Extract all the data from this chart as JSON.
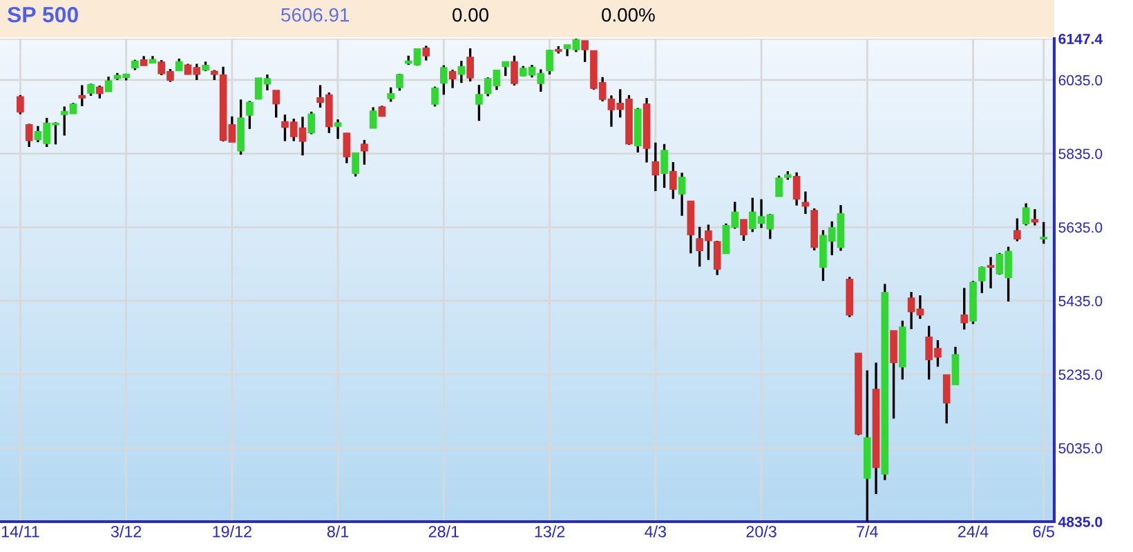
{
  "chart_data": {
    "type": "candlestick",
    "title": "SP 500",
    "annotations": [
      "5606.91",
      "0.00",
      "0.00%"
    ],
    "categories": [
      "14/11",
      null,
      null,
      null,
      null,
      null,
      null,
      null,
      null,
      null,
      null,
      null,
      "3/12",
      null,
      null,
      null,
      null,
      null,
      null,
      null,
      null,
      null,
      null,
      null,
      "19/12",
      null,
      null,
      null,
      null,
      null,
      null,
      null,
      null,
      null,
      null,
      null,
      "8/1",
      null,
      null,
      null,
      null,
      null,
      null,
      null,
      null,
      null,
      null,
      null,
      "28/1",
      null,
      null,
      null,
      null,
      null,
      null,
      null,
      null,
      null,
      null,
      null,
      "13/2",
      null,
      null,
      null,
      null,
      null,
      null,
      null,
      null,
      null,
      null,
      null,
      "4/3",
      null,
      null,
      null,
      null,
      null,
      null,
      null,
      null,
      null,
      null,
      null,
      "20/3",
      null,
      null,
      null,
      null,
      null,
      null,
      null,
      null,
      null,
      null,
      null,
      "7/4",
      null,
      null,
      null,
      null,
      null,
      null,
      null,
      null,
      null,
      null,
      null,
      "24/4",
      null,
      null,
      null,
      null,
      null,
      null,
      null,
      "6/5"
    ],
    "ohlc": [
      [
        5989,
        5994,
        5942,
        5949
      ],
      [
        5913,
        5916,
        5853,
        5871
      ],
      [
        5874,
        5910,
        5866,
        5894
      ],
      [
        5863,
        5932,
        5853,
        5917
      ],
      [
        5914,
        5920,
        5860,
        5917
      ],
      [
        5942,
        5963,
        5884,
        5949
      ],
      [
        5944,
        5973,
        5944,
        5969
      ],
      [
        5992,
        6021,
        5964,
        5987
      ],
      [
        6000,
        6025,
        5992,
        6022
      ],
      [
        6015,
        6020,
        5985,
        5999
      ],
      [
        6004,
        6044,
        6004,
        6032
      ],
      [
        6040,
        6054,
        6035,
        6047
      ],
      [
        6042,
        6052,
        6034,
        6050
      ],
      [
        6069,
        6090,
        6062,
        6086
      ],
      [
        6089,
        6100,
        6075,
        6075
      ],
      [
        6082,
        6100,
        6080,
        6090
      ],
      [
        6083,
        6089,
        6048,
        6053
      ],
      [
        6057,
        6065,
        6030,
        6035
      ],
      [
        6061,
        6093,
        6060,
        6084
      ],
      [
        6075,
        6079,
        6051,
        6051
      ],
      [
        6068,
        6079,
        6035,
        6051
      ],
      [
        6063,
        6085,
        6059,
        6074
      ],
      [
        6058,
        6062,
        6035,
        6051
      ],
      [
        6048,
        6071,
        5868,
        5872
      ],
      [
        5913,
        5936,
        5866,
        5867
      ],
      [
        5843,
        5982,
        5832,
        5931
      ],
      [
        5940,
        5978,
        5902,
        5974
      ],
      [
        5984,
        6040,
        5982,
        6040
      ],
      [
        6025,
        6050,
        6007,
        6038
      ],
      [
        6006,
        6006,
        5933,
        5971
      ],
      [
        5921,
        5941,
        5869,
        5907
      ],
      [
        5920,
        5930,
        5869,
        5882
      ],
      [
        5904,
        5935,
        5830,
        5869
      ],
      [
        5892,
        5949,
        5888,
        5942
      ],
      [
        5986,
        6021,
        5960,
        5975
      ],
      [
        5994,
        6001,
        5891,
        5909
      ],
      [
        5910,
        5928,
        5875,
        5918
      ],
      [
        5890,
        5891,
        5809,
        5827
      ],
      [
        5782,
        5838,
        5773,
        5836
      ],
      [
        5860,
        5872,
        5805,
        5843
      ],
      [
        5905,
        5961,
        5905,
        5950
      ],
      [
        5961,
        5965,
        5936,
        5937
      ],
      [
        5985,
        6015,
        5976,
        5997
      ],
      [
        6015,
        6052,
        6006,
        6049
      ],
      [
        6081,
        6101,
        6076,
        6086
      ],
      [
        6077,
        6119,
        6074,
        6119
      ],
      [
        6121,
        6128,
        6088,
        6101
      ],
      [
        5970,
        6017,
        5963,
        6012
      ],
      [
        6027,
        6075,
        5995,
        6068
      ],
      [
        6057,
        6063,
        6013,
        6039
      ],
      [
        6051,
        6087,
        6027,
        6071
      ],
      [
        6096,
        6121,
        6031,
        6041
      ],
      [
        5970,
        6022,
        5924,
        5995
      ],
      [
        5999,
        6042,
        5991,
        6038
      ],
      [
        6020,
        6063,
        6008,
        6061
      ],
      [
        6072,
        6084,
        6046,
        6084
      ],
      [
        6084,
        6101,
        6020,
        6026
      ],
      [
        6047,
        6073,
        6045,
        6066
      ],
      [
        6049,
        6076,
        6042,
        6069
      ],
      [
        6026,
        6064,
        6003,
        6052
      ],
      [
        6061,
        6117,
        6050,
        6115
      ],
      [
        6117,
        6127,
        6107,
        6114
      ],
      [
        6121,
        6130,
        6100,
        6130
      ],
      [
        6118,
        6147.4,
        6111,
        6144
      ],
      [
        6141,
        6141,
        6084,
        6118
      ],
      [
        6114,
        6115,
        6009,
        6013
      ],
      [
        6027,
        6043,
        5977,
        5983
      ],
      [
        5982,
        5993,
        5908,
        5955
      ],
      [
        5971,
        6010,
        5933,
        5956
      ],
      [
        5982,
        5994,
        5859,
        5862
      ],
      [
        5857,
        5959,
        5838,
        5955
      ],
      [
        5969,
        5986,
        5811,
        5850
      ],
      [
        5812,
        5865,
        5733,
        5778
      ],
      [
        5782,
        5861,
        5742,
        5843
      ],
      [
        5786,
        5812,
        5712,
        5739
      ],
      [
        5726,
        5783,
        5666,
        5770
      ],
      [
        5705,
        5705,
        5564,
        5615
      ],
      [
        5603,
        5636,
        5528,
        5572
      ],
      [
        5624,
        5642,
        5546,
        5599
      ],
      [
        5595,
        5598,
        5505,
        5522
      ],
      [
        5564,
        5645,
        5563,
        5639
      ],
      [
        5636,
        5704,
        5631,
        5675
      ],
      [
        5655,
        5655,
        5598,
        5615
      ],
      [
        5632,
        5715,
        5622,
        5675
      ],
      [
        5646,
        5711,
        5633,
        5663
      ],
      [
        5631,
        5671,
        5603,
        5668
      ],
      [
        5719,
        5775,
        5718,
        5768
      ],
      [
        5771,
        5787,
        5764,
        5777
      ],
      [
        5772,
        5784,
        5694,
        5712
      ],
      [
        5702,
        5732,
        5671,
        5693
      ],
      [
        5680,
        5686,
        5572,
        5581
      ],
      [
        5527,
        5627,
        5489,
        5612
      ],
      [
        5598,
        5651,
        5559,
        5633
      ],
      [
        5581,
        5695,
        5571,
        5671
      ],
      [
        5493,
        5500,
        5391,
        5397
      ],
      [
        5292,
        5292,
        5070,
        5074
      ],
      [
        4954,
        5246,
        4835,
        5062
      ],
      [
        5194,
        5267,
        4910,
        4983
      ],
      [
        4965,
        5481,
        4948,
        5457
      ],
      [
        5353,
        5353,
        5115,
        5268
      ],
      [
        5256,
        5381,
        5221,
        5363
      ],
      [
        5442,
        5459,
        5358,
        5406
      ],
      [
        5412,
        5450,
        5386,
        5397
      ],
      [
        5336,
        5367,
        5221,
        5276
      ],
      [
        5305,
        5328,
        5256,
        5283
      ],
      [
        5233,
        5233,
        5102,
        5158
      ],
      [
        5208,
        5310,
        5208,
        5288
      ],
      [
        5396,
        5470,
        5357,
        5376
      ],
      [
        5381,
        5489,
        5372,
        5485
      ],
      [
        5490,
        5528,
        5456,
        5525
      ],
      [
        5530,
        5554,
        5469,
        5527
      ],
      [
        5509,
        5565,
        5506,
        5561
      ],
      [
        5499,
        5582,
        5433,
        5569
      ],
      [
        5625,
        5659,
        5597,
        5604
      ],
      [
        5645,
        5700,
        5640,
        5687
      ],
      [
        5655,
        5684,
        5640,
        5650
      ],
      [
        5604,
        5649,
        5590,
        5607
      ]
    ],
    "colors": [
      "#d43535",
      "#d43535",
      "#33d633",
      "#33d633",
      "#33d633",
      "#33d633",
      "#33d633",
      "#d43535",
      "#33d633",
      "#d43535",
      "#33d633",
      "#33d633",
      "#33d633",
      "#33d633",
      "#d43535",
      "#33d633",
      "#d43535",
      "#d43535",
      "#33d633",
      "#d43535",
      "#d43535",
      "#33d633",
      "#d43535",
      "#d43535",
      "#d43535",
      "#33d633",
      "#33d633",
      "#33d633",
      "#33d633",
      "#d43535",
      "#d43535",
      "#d43535",
      "#d43535",
      "#33d633",
      "#d43535",
      "#d43535",
      "#33d633",
      "#d43535",
      "#33d633",
      "#d43535",
      "#33d633",
      "#d43535",
      "#33d633",
      "#33d633",
      "#33d633",
      "#33d633",
      "#d43535",
      "#33d633",
      "#33d633",
      "#d43535",
      "#33d633",
      "#d43535",
      "#33d633",
      "#33d633",
      "#33d633",
      "#33d633",
      "#d43535",
      "#33d633",
      "#33d633",
      "#33d633",
      "#33d633",
      "#d43535",
      "#33d633",
      "#33d633",
      "#d43535",
      "#d43535",
      "#d43535",
      "#d43535",
      "#d43535",
      "#d43535",
      "#33d633",
      "#d43535",
      "#d43535",
      "#33d633",
      "#d43535",
      "#33d633",
      "#d43535",
      "#d43535",
      "#d43535",
      "#d43535",
      "#33d633",
      "#33d633",
      "#d43535",
      "#33d633",
      "#33d633",
      "#33d633",
      "#33d633",
      "#33d633",
      "#d43535",
      "#d43535",
      "#d43535",
      "#33d633",
      "#33d633",
      "#33d633",
      "#d43535",
      "#d43535",
      "#33d633",
      "#d43535",
      "#33d633",
      "#d43535",
      "#33d633",
      "#d43535",
      "#d43535",
      "#d43535",
      "#d43535",
      "#d43535",
      "#33d633",
      "#d43535",
      "#33d633",
      "#33d633",
      "#d43535",
      "#33d633",
      "#33d633",
      "#d43535",
      "#33d633",
      "#d43535",
      "#33d633"
    ],
    "ylim": [
      4835,
      6147.4
    ],
    "yticks": [
      {
        "value": 4835,
        "label": "4835.0"
      },
      {
        "value": 5035,
        "label": "5035.0"
      },
      {
        "value": 5235,
        "label": "5235.0"
      },
      {
        "value": 5435,
        "label": "5435.0"
      },
      {
        "value": 5635,
        "label": "5635.0"
      },
      {
        "value": 5835,
        "label": "5835.0"
      },
      {
        "value": 6035,
        "label": "6035.0"
      },
      {
        "value": 6147.4,
        "label": "6147.4"
      }
    ],
    "grid": true
  }
}
